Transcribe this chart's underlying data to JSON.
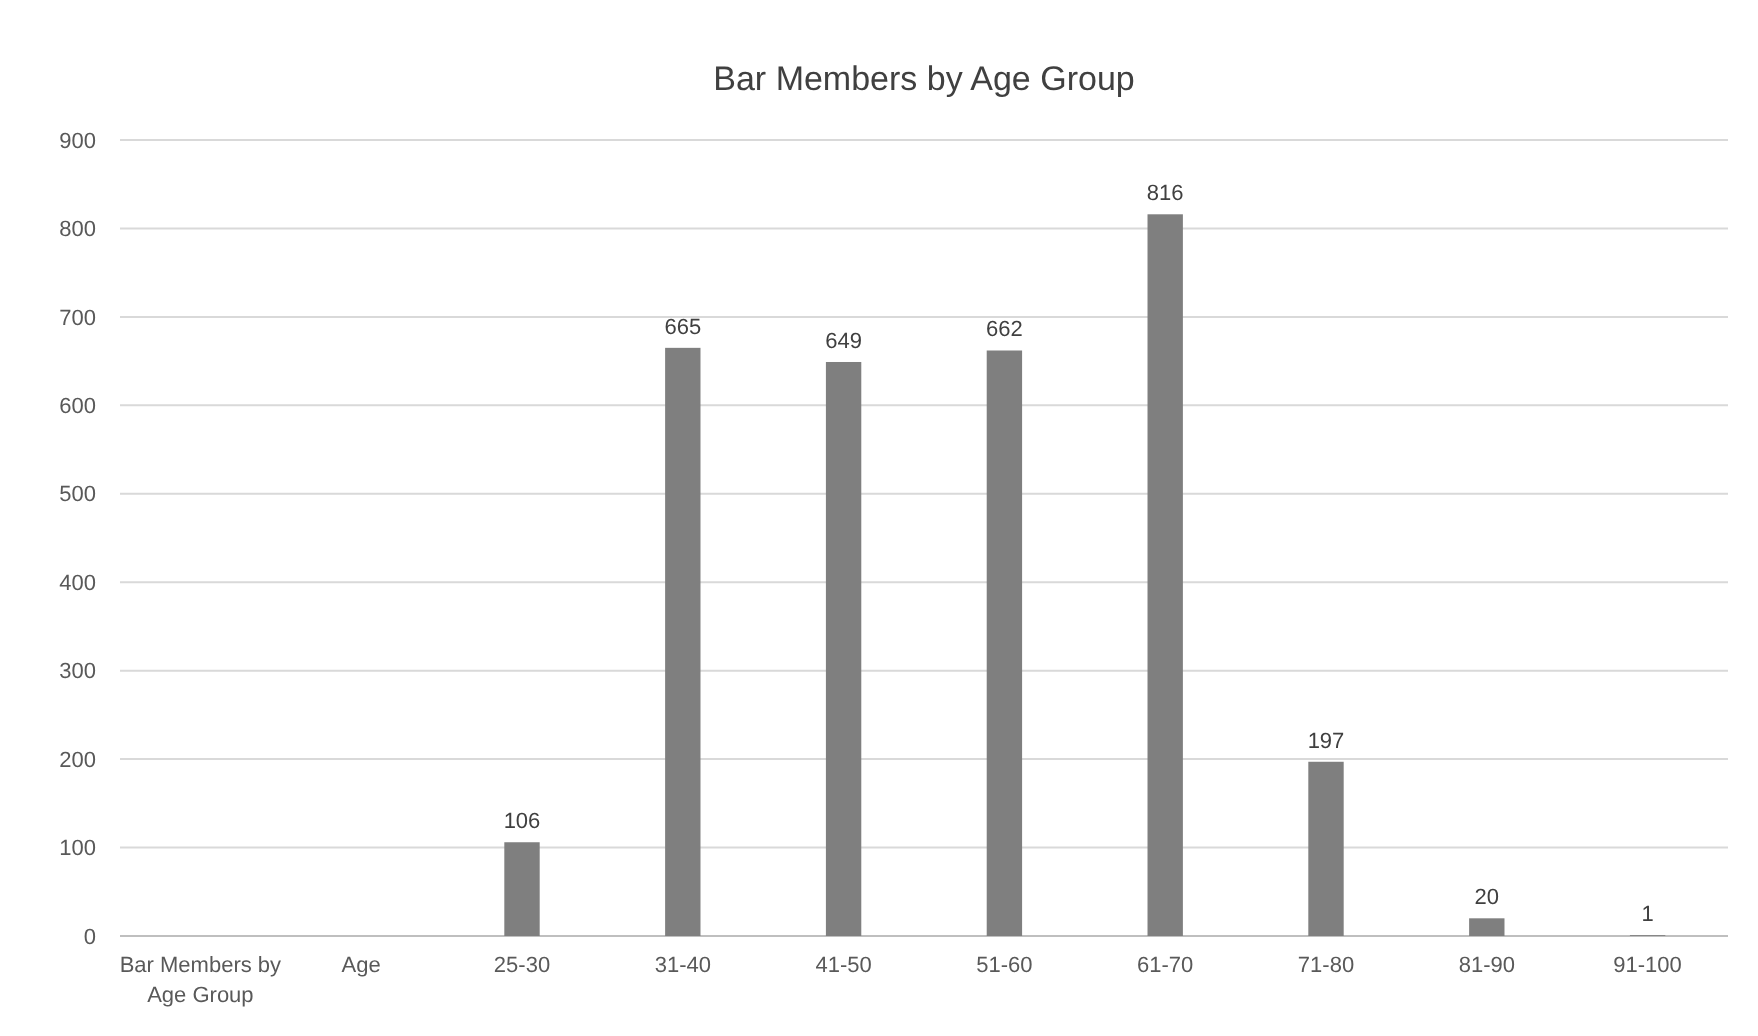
{
  "chart_data": {
    "type": "bar",
    "title": "Bar Members by Age Group",
    "categories": [
      "Bar Members by Age Group",
      "Age",
      "25-30",
      "31-40",
      "41-50",
      "51-60",
      "61-70",
      "71-80",
      "81-90",
      "91-100"
    ],
    "values": [
      null,
      null,
      106,
      665,
      649,
      662,
      816,
      197,
      20,
      1
    ],
    "color": "#7f7f7f",
    "ylim": [
      0,
      900
    ],
    "yticks": [
      0,
      100,
      200,
      300,
      400,
      500,
      600,
      700,
      800,
      900
    ],
    "grid": "y",
    "data_labels": true
  }
}
